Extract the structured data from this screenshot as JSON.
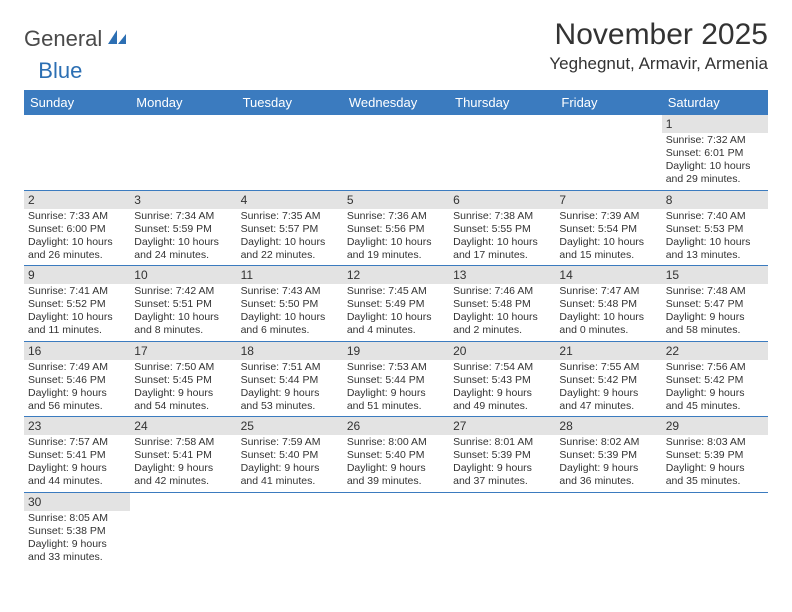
{
  "logo": {
    "general": "General",
    "blue": "Blue"
  },
  "title": "November 2025",
  "location": "Yeghegnut, Armavir, Armenia",
  "colors": {
    "header_bg": "#3b7bbf",
    "header_text": "#ffffff",
    "daynum_bg": "#e3e3e3",
    "border": "#3b7bbf",
    "text": "#333333",
    "logo_blue": "#2c6fb3"
  },
  "day_headers": [
    "Sunday",
    "Monday",
    "Tuesday",
    "Wednesday",
    "Thursday",
    "Friday",
    "Saturday"
  ],
  "weeks": [
    [
      null,
      null,
      null,
      null,
      null,
      null,
      {
        "n": "1",
        "sr": "7:32 AM",
        "ss": "6:01 PM",
        "dl": "10 hours and 29 minutes."
      }
    ],
    [
      {
        "n": "2",
        "sr": "7:33 AM",
        "ss": "6:00 PM",
        "dl": "10 hours and 26 minutes."
      },
      {
        "n": "3",
        "sr": "7:34 AM",
        "ss": "5:59 PM",
        "dl": "10 hours and 24 minutes."
      },
      {
        "n": "4",
        "sr": "7:35 AM",
        "ss": "5:57 PM",
        "dl": "10 hours and 22 minutes."
      },
      {
        "n": "5",
        "sr": "7:36 AM",
        "ss": "5:56 PM",
        "dl": "10 hours and 19 minutes."
      },
      {
        "n": "6",
        "sr": "7:38 AM",
        "ss": "5:55 PM",
        "dl": "10 hours and 17 minutes."
      },
      {
        "n": "7",
        "sr": "7:39 AM",
        "ss": "5:54 PM",
        "dl": "10 hours and 15 minutes."
      },
      {
        "n": "8",
        "sr": "7:40 AM",
        "ss": "5:53 PM",
        "dl": "10 hours and 13 minutes."
      }
    ],
    [
      {
        "n": "9",
        "sr": "7:41 AM",
        "ss": "5:52 PM",
        "dl": "10 hours and 11 minutes."
      },
      {
        "n": "10",
        "sr": "7:42 AM",
        "ss": "5:51 PM",
        "dl": "10 hours and 8 minutes."
      },
      {
        "n": "11",
        "sr": "7:43 AM",
        "ss": "5:50 PM",
        "dl": "10 hours and 6 minutes."
      },
      {
        "n": "12",
        "sr": "7:45 AM",
        "ss": "5:49 PM",
        "dl": "10 hours and 4 minutes."
      },
      {
        "n": "13",
        "sr": "7:46 AM",
        "ss": "5:48 PM",
        "dl": "10 hours and 2 minutes."
      },
      {
        "n": "14",
        "sr": "7:47 AM",
        "ss": "5:48 PM",
        "dl": "10 hours and 0 minutes."
      },
      {
        "n": "15",
        "sr": "7:48 AM",
        "ss": "5:47 PM",
        "dl": "9 hours and 58 minutes."
      }
    ],
    [
      {
        "n": "16",
        "sr": "7:49 AM",
        "ss": "5:46 PM",
        "dl": "9 hours and 56 minutes."
      },
      {
        "n": "17",
        "sr": "7:50 AM",
        "ss": "5:45 PM",
        "dl": "9 hours and 54 minutes."
      },
      {
        "n": "18",
        "sr": "7:51 AM",
        "ss": "5:44 PM",
        "dl": "9 hours and 53 minutes."
      },
      {
        "n": "19",
        "sr": "7:53 AM",
        "ss": "5:44 PM",
        "dl": "9 hours and 51 minutes."
      },
      {
        "n": "20",
        "sr": "7:54 AM",
        "ss": "5:43 PM",
        "dl": "9 hours and 49 minutes."
      },
      {
        "n": "21",
        "sr": "7:55 AM",
        "ss": "5:42 PM",
        "dl": "9 hours and 47 minutes."
      },
      {
        "n": "22",
        "sr": "7:56 AM",
        "ss": "5:42 PM",
        "dl": "9 hours and 45 minutes."
      }
    ],
    [
      {
        "n": "23",
        "sr": "7:57 AM",
        "ss": "5:41 PM",
        "dl": "9 hours and 44 minutes."
      },
      {
        "n": "24",
        "sr": "7:58 AM",
        "ss": "5:41 PM",
        "dl": "9 hours and 42 minutes."
      },
      {
        "n": "25",
        "sr": "7:59 AM",
        "ss": "5:40 PM",
        "dl": "9 hours and 41 minutes."
      },
      {
        "n": "26",
        "sr": "8:00 AM",
        "ss": "5:40 PM",
        "dl": "9 hours and 39 minutes."
      },
      {
        "n": "27",
        "sr": "8:01 AM",
        "ss": "5:39 PM",
        "dl": "9 hours and 37 minutes."
      },
      {
        "n": "28",
        "sr": "8:02 AM",
        "ss": "5:39 PM",
        "dl": "9 hours and 36 minutes."
      },
      {
        "n": "29",
        "sr": "8:03 AM",
        "ss": "5:39 PM",
        "dl": "9 hours and 35 minutes."
      }
    ],
    [
      {
        "n": "30",
        "sr": "8:05 AM",
        "ss": "5:38 PM",
        "dl": "9 hours and 33 minutes."
      },
      null,
      null,
      null,
      null,
      null,
      null
    ]
  ],
  "labels": {
    "sunrise": "Sunrise:",
    "sunset": "Sunset:",
    "daylight": "Daylight:"
  }
}
